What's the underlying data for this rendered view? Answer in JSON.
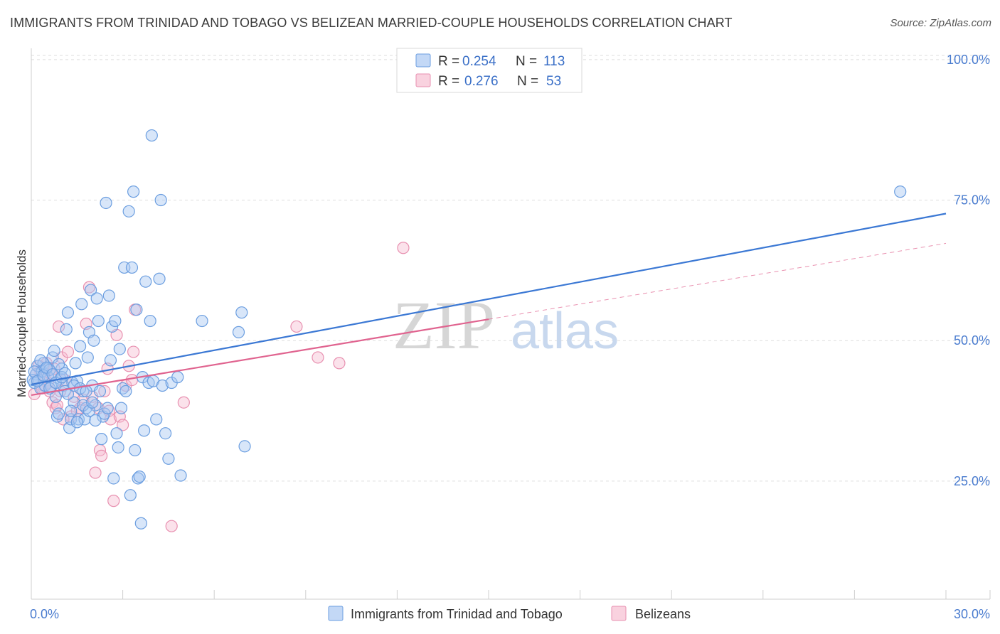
{
  "header": {
    "title": "IMMIGRANTS FROM TRINIDAD AND TOBAGO VS BELIZEAN MARRIED-COUPLE HOUSEHOLDS CORRELATION CHART",
    "source": "Source: ZipAtlas.com"
  },
  "watermark": {
    "zip": "ZIP",
    "atlas": "atlas"
  },
  "legend": {
    "series1": {
      "r_label": "R =",
      "r_value": "0.254",
      "n_label": "N =",
      "n_value": "113"
    },
    "series2": {
      "r_label": "R =",
      "r_value": "0.276",
      "n_label": "N =",
      "n_value": "53"
    }
  },
  "bottom_legend": {
    "series1": "Immigrants from Trinidad and Tobago",
    "series2": "Belizeans"
  },
  "colors": {
    "series1_fill": "#a9c8f2",
    "series1_stroke": "#6b9ee0",
    "series1_line": "#3b78d4",
    "series2_fill": "#f7bfd2",
    "series2_stroke": "#e890b0",
    "series2_line": "#e0638f",
    "grid": "#dddddd",
    "axis_text": "#4a7ccf"
  },
  "chart_data": {
    "type": "scatter",
    "title": "IMMIGRANTS FROM TRINIDAD AND TOBAGO VS BELIZEAN MARRIED-COUPLE HOUSEHOLDS CORRELATION CHART",
    "xlabel": "",
    "ylabel": "Married-couple Households",
    "xlim": [
      0,
      30
    ],
    "ylim": [
      4,
      102
    ],
    "x_tick_labels": [
      "0.0%",
      "30.0%"
    ],
    "y_ticks": [
      25,
      50,
      75,
      100
    ],
    "y_tick_labels": [
      "25.0%",
      "50.0%",
      "75.0%",
      "100.0%"
    ],
    "grid": true,
    "series": [
      {
        "name": "Immigrants from Trinidad and Tobago",
        "r": 0.254,
        "n": 113,
        "trend": {
          "x": [
            0,
            30
          ],
          "y": [
            42.2,
            72.6
          ]
        },
        "points": [
          [
            0.1,
            42.5
          ],
          [
            0.15,
            44
          ],
          [
            0.2,
            45.5
          ],
          [
            0.25,
            43
          ],
          [
            0.3,
            41.5
          ],
          [
            0.35,
            44.5
          ],
          [
            0.4,
            46
          ],
          [
            0.45,
            42
          ],
          [
            0.5,
            45
          ],
          [
            0.55,
            43.5
          ],
          [
            0.6,
            44.8
          ],
          [
            0.65,
            41.8
          ],
          [
            0.7,
            47
          ],
          [
            0.75,
            48.2
          ],
          [
            0.8,
            40
          ],
          [
            0.85,
            36.5
          ],
          [
            0.9,
            37
          ],
          [
            0.95,
            43.2
          ],
          [
            1.0,
            45
          ],
          [
            1.05,
            42
          ],
          [
            1.1,
            41
          ],
          [
            1.15,
            52
          ],
          [
            1.2,
            55
          ],
          [
            1.25,
            34.5
          ],
          [
            1.3,
            36
          ],
          [
            1.35,
            42.5
          ],
          [
            1.4,
            39
          ],
          [
            1.45,
            46
          ],
          [
            1.5,
            42.8
          ],
          [
            1.55,
            36
          ],
          [
            1.6,
            49
          ],
          [
            1.65,
            56.5
          ],
          [
            1.7,
            41
          ],
          [
            1.75,
            36
          ],
          [
            1.8,
            38
          ],
          [
            1.85,
            47
          ],
          [
            1.9,
            51.5
          ],
          [
            1.95,
            59
          ],
          [
            2.0,
            42
          ],
          [
            2.05,
            50
          ],
          [
            2.1,
            38.5
          ],
          [
            2.15,
            57.5
          ],
          [
            2.2,
            53.5
          ],
          [
            2.25,
            41
          ],
          [
            2.3,
            32.5
          ],
          [
            2.35,
            36.5
          ],
          [
            2.4,
            37
          ],
          [
            2.45,
            74.5
          ],
          [
            2.5,
            38
          ],
          [
            2.55,
            58
          ],
          [
            2.6,
            46.5
          ],
          [
            2.65,
            52.5
          ],
          [
            2.7,
            25.5
          ],
          [
            2.75,
            53.5
          ],
          [
            2.8,
            33.5
          ],
          [
            2.85,
            31
          ],
          [
            2.9,
            48.5
          ],
          [
            2.95,
            38
          ],
          [
            3.0,
            41.5
          ],
          [
            3.05,
            63
          ],
          [
            3.1,
            41
          ],
          [
            3.2,
            73
          ],
          [
            3.25,
            22.5
          ],
          [
            3.3,
            63
          ],
          [
            3.35,
            76.5
          ],
          [
            3.4,
            30.5
          ],
          [
            3.45,
            55.5
          ],
          [
            3.5,
            25.5
          ],
          [
            3.55,
            25.8
          ],
          [
            3.6,
            17.5
          ],
          [
            3.65,
            43.5
          ],
          [
            3.7,
            34
          ],
          [
            3.75,
            60.5
          ],
          [
            3.85,
            42.5
          ],
          [
            3.9,
            53.5
          ],
          [
            3.95,
            86.5
          ],
          [
            4.0,
            42.8
          ],
          [
            4.1,
            36
          ],
          [
            4.2,
            61
          ],
          [
            4.25,
            75
          ],
          [
            4.3,
            42
          ],
          [
            4.4,
            33.5
          ],
          [
            4.5,
            29
          ],
          [
            4.6,
            42.5
          ],
          [
            4.8,
            43.5
          ],
          [
            4.9,
            26
          ],
          [
            5.6,
            53.5
          ],
          [
            6.8,
            51.5
          ],
          [
            6.9,
            55
          ],
          [
            7.0,
            31.2
          ],
          [
            0.05,
            43
          ],
          [
            0.1,
            44.5
          ],
          [
            0.2,
            42.8
          ],
          [
            0.3,
            46.5
          ],
          [
            0.4,
            43.8
          ],
          [
            0.5,
            45.2
          ],
          [
            0.6,
            41.5
          ],
          [
            0.7,
            44
          ],
          [
            0.8,
            42.5
          ],
          [
            0.9,
            45.8
          ],
          [
            1.0,
            43.5
          ],
          [
            1.1,
            44.2
          ],
          [
            1.2,
            40.5
          ],
          [
            1.3,
            37.5
          ],
          [
            1.4,
            42
          ],
          [
            1.5,
            35.5
          ],
          [
            1.6,
            41.5
          ],
          [
            1.7,
            38.5
          ],
          [
            1.8,
            41
          ],
          [
            1.9,
            37.5
          ],
          [
            2.0,
            39
          ],
          [
            2.1,
            35.8
          ],
          [
            28.5,
            76.5
          ]
        ]
      },
      {
        "name": "Belizeans",
        "r": 0.276,
        "n": 53,
        "trend": {
          "x": [
            0,
            15
          ],
          "y": [
            40.3,
            53.8
          ]
        },
        "trend_dashed": {
          "x": [
            15,
            30
          ],
          "y": [
            53.8,
            67.3
          ]
        },
        "points": [
          [
            0.1,
            40.5
          ],
          [
            0.2,
            43
          ],
          [
            0.3,
            44.5
          ],
          [
            0.4,
            42
          ],
          [
            0.5,
            46
          ],
          [
            0.6,
            41
          ],
          [
            0.7,
            39
          ],
          [
            0.8,
            38
          ],
          [
            0.9,
            52.5
          ],
          [
            1.0,
            47
          ],
          [
            1.1,
            43
          ],
          [
            1.2,
            48
          ],
          [
            1.3,
            36.5
          ],
          [
            1.4,
            40
          ],
          [
            1.5,
            37.5
          ],
          [
            1.6,
            38
          ],
          [
            1.7,
            39.5
          ],
          [
            1.8,
            53
          ],
          [
            1.9,
            59.5
          ],
          [
            2.0,
            40
          ],
          [
            2.1,
            26.5
          ],
          [
            2.2,
            38
          ],
          [
            2.25,
            30.5
          ],
          [
            2.3,
            29.5
          ],
          [
            2.4,
            41
          ],
          [
            2.5,
            45
          ],
          [
            2.55,
            37.5
          ],
          [
            2.6,
            36
          ],
          [
            2.7,
            21.5
          ],
          [
            2.8,
            51
          ],
          [
            2.9,
            36.5
          ],
          [
            3.0,
            35
          ],
          [
            3.1,
            42
          ],
          [
            3.2,
            45.5
          ],
          [
            3.3,
            43
          ],
          [
            3.35,
            48
          ],
          [
            3.4,
            55.5
          ],
          [
            4.6,
            17
          ],
          [
            5.0,
            39
          ],
          [
            8.7,
            52.5
          ],
          [
            9.4,
            47
          ],
          [
            10.1,
            46
          ],
          [
            12.2,
            66.5
          ],
          [
            0.15,
            44
          ],
          [
            0.25,
            45.5
          ],
          [
            0.35,
            41.5
          ],
          [
            0.45,
            43.5
          ],
          [
            0.55,
            42.5
          ],
          [
            0.65,
            44
          ],
          [
            0.75,
            45
          ],
          [
            0.85,
            38.5
          ],
          [
            0.95,
            41
          ],
          [
            1.05,
            36
          ]
        ]
      }
    ]
  }
}
